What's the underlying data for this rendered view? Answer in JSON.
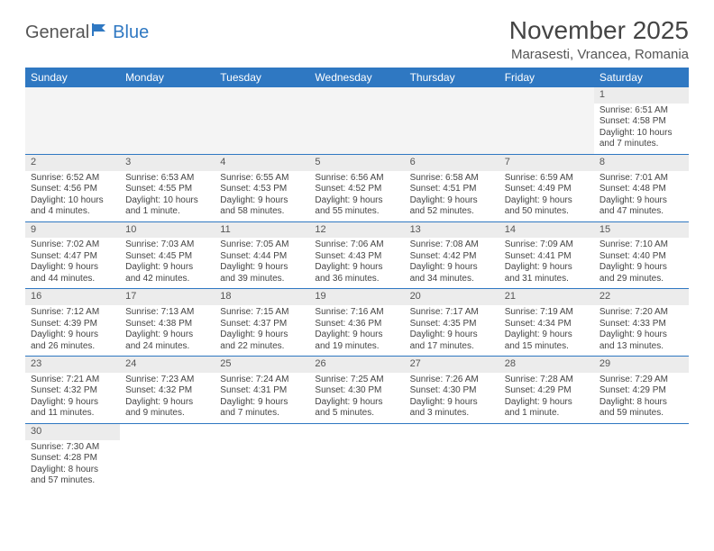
{
  "logo": {
    "text1": "General",
    "text2": "Blue"
  },
  "title": "November 2025",
  "location": "Marasesti, Vrancea, Romania",
  "colors": {
    "header_bg": "#2f78c2",
    "header_text": "#ffffff",
    "band_bg": "#ececec",
    "row_divider": "#2f78c2"
  },
  "dayHeaders": [
    "Sunday",
    "Monday",
    "Tuesday",
    "Wednesday",
    "Thursday",
    "Friday",
    "Saturday"
  ],
  "weeks": [
    [
      null,
      null,
      null,
      null,
      null,
      null,
      {
        "n": "1",
        "sunrise": "Sunrise: 6:51 AM",
        "sunset": "Sunset: 4:58 PM",
        "day1": "Daylight: 10 hours",
        "day2": "and 7 minutes."
      }
    ],
    [
      {
        "n": "2",
        "sunrise": "Sunrise: 6:52 AM",
        "sunset": "Sunset: 4:56 PM",
        "day1": "Daylight: 10 hours",
        "day2": "and 4 minutes."
      },
      {
        "n": "3",
        "sunrise": "Sunrise: 6:53 AM",
        "sunset": "Sunset: 4:55 PM",
        "day1": "Daylight: 10 hours",
        "day2": "and 1 minute."
      },
      {
        "n": "4",
        "sunrise": "Sunrise: 6:55 AM",
        "sunset": "Sunset: 4:53 PM",
        "day1": "Daylight: 9 hours",
        "day2": "and 58 minutes."
      },
      {
        "n": "5",
        "sunrise": "Sunrise: 6:56 AM",
        "sunset": "Sunset: 4:52 PM",
        "day1": "Daylight: 9 hours",
        "day2": "and 55 minutes."
      },
      {
        "n": "6",
        "sunrise": "Sunrise: 6:58 AM",
        "sunset": "Sunset: 4:51 PM",
        "day1": "Daylight: 9 hours",
        "day2": "and 52 minutes."
      },
      {
        "n": "7",
        "sunrise": "Sunrise: 6:59 AM",
        "sunset": "Sunset: 4:49 PM",
        "day1": "Daylight: 9 hours",
        "day2": "and 50 minutes."
      },
      {
        "n": "8",
        "sunrise": "Sunrise: 7:01 AM",
        "sunset": "Sunset: 4:48 PM",
        "day1": "Daylight: 9 hours",
        "day2": "and 47 minutes."
      }
    ],
    [
      {
        "n": "9",
        "sunrise": "Sunrise: 7:02 AM",
        "sunset": "Sunset: 4:47 PM",
        "day1": "Daylight: 9 hours",
        "day2": "and 44 minutes."
      },
      {
        "n": "10",
        "sunrise": "Sunrise: 7:03 AM",
        "sunset": "Sunset: 4:45 PM",
        "day1": "Daylight: 9 hours",
        "day2": "and 42 minutes."
      },
      {
        "n": "11",
        "sunrise": "Sunrise: 7:05 AM",
        "sunset": "Sunset: 4:44 PM",
        "day1": "Daylight: 9 hours",
        "day2": "and 39 minutes."
      },
      {
        "n": "12",
        "sunrise": "Sunrise: 7:06 AM",
        "sunset": "Sunset: 4:43 PM",
        "day1": "Daylight: 9 hours",
        "day2": "and 36 minutes."
      },
      {
        "n": "13",
        "sunrise": "Sunrise: 7:08 AM",
        "sunset": "Sunset: 4:42 PM",
        "day1": "Daylight: 9 hours",
        "day2": "and 34 minutes."
      },
      {
        "n": "14",
        "sunrise": "Sunrise: 7:09 AM",
        "sunset": "Sunset: 4:41 PM",
        "day1": "Daylight: 9 hours",
        "day2": "and 31 minutes."
      },
      {
        "n": "15",
        "sunrise": "Sunrise: 7:10 AM",
        "sunset": "Sunset: 4:40 PM",
        "day1": "Daylight: 9 hours",
        "day2": "and 29 minutes."
      }
    ],
    [
      {
        "n": "16",
        "sunrise": "Sunrise: 7:12 AM",
        "sunset": "Sunset: 4:39 PM",
        "day1": "Daylight: 9 hours",
        "day2": "and 26 minutes."
      },
      {
        "n": "17",
        "sunrise": "Sunrise: 7:13 AM",
        "sunset": "Sunset: 4:38 PM",
        "day1": "Daylight: 9 hours",
        "day2": "and 24 minutes."
      },
      {
        "n": "18",
        "sunrise": "Sunrise: 7:15 AM",
        "sunset": "Sunset: 4:37 PM",
        "day1": "Daylight: 9 hours",
        "day2": "and 22 minutes."
      },
      {
        "n": "19",
        "sunrise": "Sunrise: 7:16 AM",
        "sunset": "Sunset: 4:36 PM",
        "day1": "Daylight: 9 hours",
        "day2": "and 19 minutes."
      },
      {
        "n": "20",
        "sunrise": "Sunrise: 7:17 AM",
        "sunset": "Sunset: 4:35 PM",
        "day1": "Daylight: 9 hours",
        "day2": "and 17 minutes."
      },
      {
        "n": "21",
        "sunrise": "Sunrise: 7:19 AM",
        "sunset": "Sunset: 4:34 PM",
        "day1": "Daylight: 9 hours",
        "day2": "and 15 minutes."
      },
      {
        "n": "22",
        "sunrise": "Sunrise: 7:20 AM",
        "sunset": "Sunset: 4:33 PM",
        "day1": "Daylight: 9 hours",
        "day2": "and 13 minutes."
      }
    ],
    [
      {
        "n": "23",
        "sunrise": "Sunrise: 7:21 AM",
        "sunset": "Sunset: 4:32 PM",
        "day1": "Daylight: 9 hours",
        "day2": "and 11 minutes."
      },
      {
        "n": "24",
        "sunrise": "Sunrise: 7:23 AM",
        "sunset": "Sunset: 4:32 PM",
        "day1": "Daylight: 9 hours",
        "day2": "and 9 minutes."
      },
      {
        "n": "25",
        "sunrise": "Sunrise: 7:24 AM",
        "sunset": "Sunset: 4:31 PM",
        "day1": "Daylight: 9 hours",
        "day2": "and 7 minutes."
      },
      {
        "n": "26",
        "sunrise": "Sunrise: 7:25 AM",
        "sunset": "Sunset: 4:30 PM",
        "day1": "Daylight: 9 hours",
        "day2": "and 5 minutes."
      },
      {
        "n": "27",
        "sunrise": "Sunrise: 7:26 AM",
        "sunset": "Sunset: 4:30 PM",
        "day1": "Daylight: 9 hours",
        "day2": "and 3 minutes."
      },
      {
        "n": "28",
        "sunrise": "Sunrise: 7:28 AM",
        "sunset": "Sunset: 4:29 PM",
        "day1": "Daylight: 9 hours",
        "day2": "and 1 minute."
      },
      {
        "n": "29",
        "sunrise": "Sunrise: 7:29 AM",
        "sunset": "Sunset: 4:29 PM",
        "day1": "Daylight: 8 hours",
        "day2": "and 59 minutes."
      }
    ],
    [
      {
        "n": "30",
        "sunrise": "Sunrise: 7:30 AM",
        "sunset": "Sunset: 4:28 PM",
        "day1": "Daylight: 8 hours",
        "day2": "and 57 minutes."
      },
      null,
      null,
      null,
      null,
      null,
      null
    ]
  ]
}
